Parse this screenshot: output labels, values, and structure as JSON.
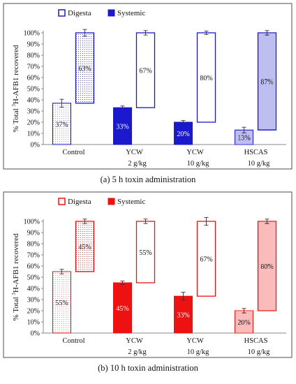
{
  "chart_data": [
    {
      "type": "bar",
      "stacked": true,
      "caption": "(a) 5 h toxin administration",
      "ylabel_prefix": "% Total ",
      "ylabel_sup": "3",
      "ylabel_suffix": "H-AFB1 recovered",
      "ylim": [
        0,
        100
      ],
      "yticks": [
        "0%",
        "10%",
        "20%",
        "30%",
        "40%",
        "50%",
        "60%",
        "70%",
        "80%",
        "90%",
        "100%"
      ],
      "categories": [
        {
          "line1": "Control",
          "line2": ""
        },
        {
          "line1": "YCW",
          "line2": "2 g/kg"
        },
        {
          "line1": "YCW",
          "line2": "10 g/kg"
        },
        {
          "line1": "HSCAS",
          "line2": "10 g/kg"
        }
      ],
      "legend": {
        "digesta": "Digesta",
        "systemic": "Systemic",
        "placement": "top-left"
      },
      "series": [
        {
          "name": "Systemic",
          "values": [
            37,
            33,
            20,
            13
          ],
          "labels": [
            "37%",
            "33%",
            "20%",
            "13%"
          ],
          "error": [
            3.5,
            1.5,
            1.5,
            2.5
          ]
        },
        {
          "name": "Digesta",
          "values": [
            63,
            67,
            80,
            87
          ],
          "labels": [
            "63%",
            "67%",
            "80%",
            "87%"
          ],
          "error": [
            3.0,
            2.0,
            1.5,
            2.0
          ]
        }
      ],
      "color": "#1a1acc"
    },
    {
      "type": "bar",
      "stacked": true,
      "caption": "(b) 10 h toxin administration",
      "ylabel_prefix": "% Total ",
      "ylabel_sup": "3",
      "ylabel_suffix": "H-AFB1 recovered",
      "ylim": [
        0,
        100
      ],
      "yticks": [
        "0%",
        "10%",
        "20%",
        "30%",
        "40%",
        "50%",
        "60%",
        "70%",
        "80%",
        "90%",
        "100%"
      ],
      "categories": [
        {
          "line1": "Control",
          "line2": ""
        },
        {
          "line1": "YCW",
          "line2": "2 g/kg"
        },
        {
          "line1": "YCW",
          "line2": "10 g/kg"
        },
        {
          "line1": "HSCAS",
          "line2": "10 g/kg"
        }
      ],
      "legend": {
        "digesta": "Digesta",
        "systemic": "Systemic",
        "placement": "top-left"
      },
      "series": [
        {
          "name": "Systemic",
          "values": [
            55,
            45,
            33,
            20
          ],
          "labels": [
            "55%",
            "45%",
            "33%",
            "20%"
          ],
          "error": [
            2.0,
            1.5,
            3.5,
            2.0
          ]
        },
        {
          "name": "Digesta",
          "values": [
            45,
            55,
            67,
            80
          ],
          "labels": [
            "45%",
            "55%",
            "67%",
            "80%"
          ],
          "error": [
            2.0,
            2.0,
            3.5,
            2.0
          ]
        }
      ],
      "color": "#ee1111"
    }
  ]
}
